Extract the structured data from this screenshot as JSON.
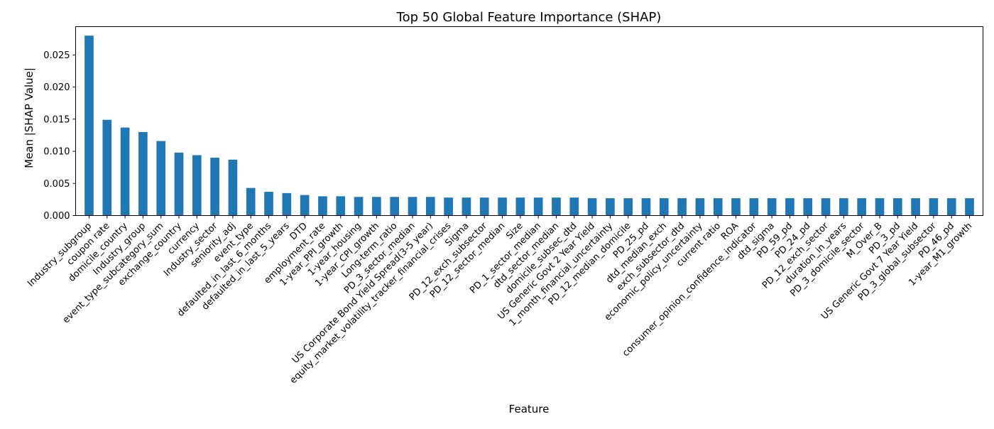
{
  "chart_data": {
    "type": "bar",
    "title": "Top 50 Global Feature Importance (SHAP)",
    "xlabel": "Feature",
    "ylabel": "Mean |SHAP Value|",
    "ylim": [
      0,
      0.0294
    ],
    "yticks": [
      0.0,
      0.005,
      0.01,
      0.015,
      0.02,
      0.025
    ],
    "ytick_labels": [
      "0.000",
      "0.005",
      "0.010",
      "0.015",
      "0.020",
      "0.025"
    ],
    "bar_color": "#1f77b4",
    "grid": false,
    "categories": [
      "Industry_subgroup",
      "coupon rate",
      "domicile_country",
      "Industry_group",
      "event_type_subcategory_sum",
      "exchange_country",
      "currency",
      "Industry_sector",
      "seniority_adj",
      "event_type",
      "defaulted_in_last_6_months",
      "defaulted_in_last_5_years",
      "DTD",
      "employment_rate",
      "1-year_PPI_growth",
      "1-year_housing",
      "1-year_CPI_growth",
      "Long-term_ratio",
      "PD_3_sector_median",
      "US Corporate Bond Yield Spread(3-5 year)",
      "equity_market_volatility_tracker_financial_crises",
      "Sigma",
      "PD_12_exch_subsector",
      "PD_12_sector_median",
      "Size",
      "PD_1_sector_median",
      "dtd_sector_median",
      "domicile_subsec_dtd",
      "US Generic Govt 2 Year Yield",
      "1_month_financial_uncertainty",
      "PD_12_median_domicile",
      "PD_25_pd",
      "dtd_median_exch",
      "exch_subsector_dtd",
      "economic_policy_uncertainty",
      "current ratio",
      "ROA",
      "consumer_opinion_confidence_indicator",
      "dtd_sigma",
      "PD_59_pd",
      "PD_24_pd",
      "PD_12_exch_sector",
      "duration_in_years",
      "PD_3_domicile_sector",
      "M_Over_B",
      "PD_3_pd",
      "US Generic Govt 7 Year Yield",
      "PD_3_global_subsector",
      "PD_46_pd",
      "1-year_M1_growth"
    ],
    "values": [
      0.028,
      0.0149,
      0.0137,
      0.013,
      0.0116,
      0.0098,
      0.0094,
      0.009,
      0.0087,
      0.0043,
      0.0037,
      0.0035,
      0.0032,
      0.003,
      0.003,
      0.0029,
      0.0029,
      0.0029,
      0.0029,
      0.0029,
      0.0028,
      0.0028,
      0.0028,
      0.0028,
      0.0028,
      0.0028,
      0.0028,
      0.0028,
      0.0027,
      0.0027,
      0.0027,
      0.0027,
      0.0027,
      0.0027,
      0.0027,
      0.0027,
      0.0027,
      0.0027,
      0.0027,
      0.0027,
      0.0027,
      0.0027,
      0.0027,
      0.0027,
      0.0027,
      0.0027,
      0.0027,
      0.0027,
      0.0027,
      0.0027
    ]
  }
}
